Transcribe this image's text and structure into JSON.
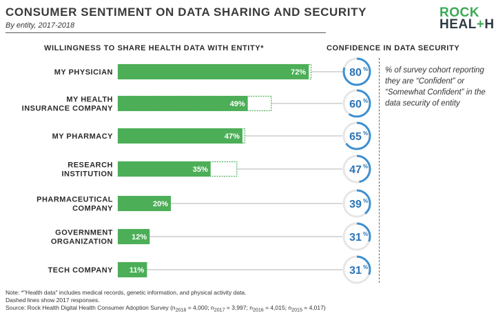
{
  "header": {
    "title": "CONSUMER SENTIMENT ON DATA SHARING AND SECURITY",
    "subtitle": "By entity, 2017-2018"
  },
  "logo": {
    "line1": "ROCK",
    "line2_a": "HEAL",
    "line2_plus": "+",
    "line2_b": "H"
  },
  "colors": {
    "bar_2018": "#4cae57",
    "bar_2017_outline": "#4cae57",
    "ring": "#3d8fd1",
    "ring_track": "#e6e6e6",
    "connector": "#9a9a9a",
    "value_text": "#2a73b5"
  },
  "chart_data": {
    "type": "bar",
    "orientation": "horizontal",
    "left_title": "WILLINGNESS TO SHARE HEALTH DATA WITH ENTITY*",
    "right_title": "CONFIDENCE IN DATA SECURITY",
    "categories": [
      [
        "MY PHYSICIAN"
      ],
      [
        "MY HEALTH",
        "INSURANCE COMPANY"
      ],
      [
        "MY PHARMACY"
      ],
      [
        "RESEARCH",
        "INSTITUTION"
      ],
      [
        "PHARMACEUTICAL",
        "COMPANY"
      ],
      [
        "GOVERNMENT",
        "ORGANIZATION"
      ],
      [
        "TECH COMPANY"
      ]
    ],
    "series": [
      {
        "name": "2018",
        "style": "solid",
        "values": [
          72,
          49,
          47,
          35,
          20,
          12,
          11
        ],
        "labels": [
          "72%",
          "49%",
          "47%",
          "35%",
          "20%",
          "12%",
          "11%"
        ]
      },
      {
        "name": "2017",
        "style": "dashed",
        "values": [
          73,
          58,
          48,
          45,
          20,
          12,
          11
        ]
      }
    ],
    "confidence": {
      "values": [
        80,
        60,
        65,
        47,
        39,
        31,
        31
      ],
      "labels": [
        "80",
        "60",
        "65",
        "47",
        "39",
        "31",
        "31"
      ],
      "unit": "%"
    },
    "xlim": [
      0,
      100
    ],
    "grid": false
  },
  "legend_note": "% of survey cohort reporting they are “Confident” or “Somewhat Confident” in the data security of entity",
  "notes": {
    "line1": "Note: *\"Health data\" includes medical records, genetic information, and physical activity data.",
    "line2": "Dashed lines show 2017 responses.",
    "source": "Source: Rock Health Digital Health Consumer Adoption Survey (n",
    "n2018_sub": "2018",
    "n2018_val": " = 4,000; n",
    "n2017_sub": "2017",
    "n2017_val": " = 3,997; n",
    "n2016_sub": "2016",
    "n2016_val": " = 4,015; n",
    "n2015_sub": "2015",
    "n2015_val": " = 4,017)"
  }
}
